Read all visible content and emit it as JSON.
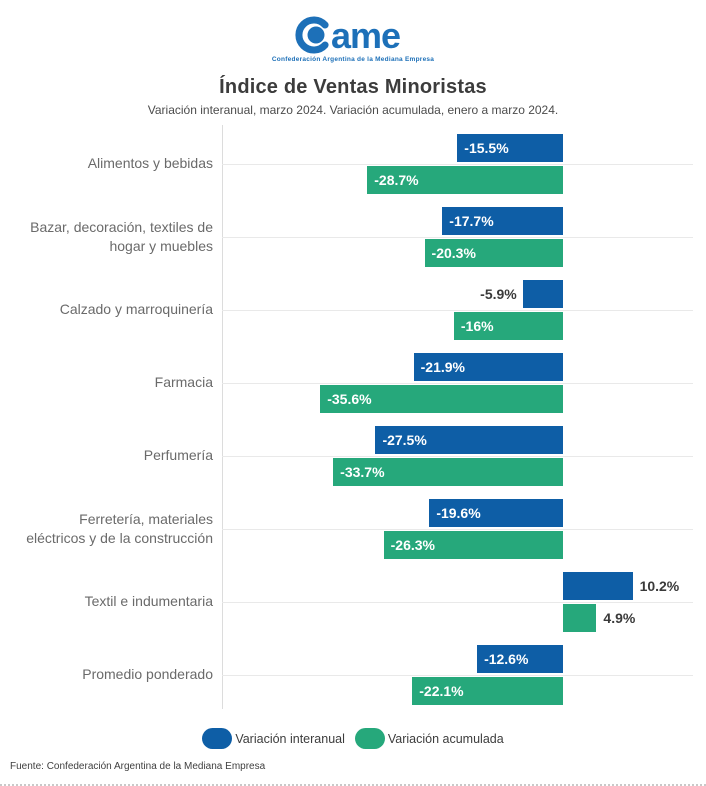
{
  "logo": {
    "brand": "ame",
    "tagline": "Confederación Argentina de la Mediana Empresa",
    "color": "#1d70b8"
  },
  "header": {
    "title": "Índice de Ventas Minoristas",
    "subtitle": "Variación interanual, marzo 2024. Variación acumulada, enero a marzo 2024."
  },
  "chart_data": {
    "type": "bar",
    "orientation": "horizontal",
    "title": "Índice de Ventas Minoristas",
    "subtitle": "Variación interanual, marzo 2024. Variación acumulada, enero a marzo 2024.",
    "unit": "%",
    "xlim": [
      -50,
      19
    ],
    "grid": "horizontal line per category + left axis line",
    "legend_position": "bottom-center",
    "categories": [
      "Alimentos y bebidas",
      "Bazar, decoración, textiles de\nhogar y muebles",
      "Calzado y marroquinería",
      "Farmacia",
      "Perfumería",
      "Ferretería, materiales\neléctricos y de la construcción",
      "Textil e indumentaria",
      "Promedio ponderado"
    ],
    "series": [
      {
        "name": "Variación interanual",
        "color": "#0e5ea6",
        "values": [
          -15.5,
          -17.7,
          -5.9,
          -21.9,
          -27.5,
          -19.6,
          10.2,
          -12.6
        ],
        "labels": [
          "-15.5%",
          "-17.7%",
          "-5.9%",
          "-21.9%",
          "-27.5%",
          "-19.6%",
          "10.2%",
          "-12.6%"
        ]
      },
      {
        "name": "Variación acumulada",
        "color": "#26a87b",
        "values": [
          -28.7,
          -20.3,
          -16,
          -35.6,
          -33.7,
          -26.3,
          4.9,
          -22.1
        ],
        "labels": [
          "-28.7%",
          "-20.3%",
          "-16%",
          "-35.6%",
          "-33.7%",
          "-26.3%",
          "4.9%",
          "-22.1%"
        ]
      }
    ]
  },
  "legend": {
    "items": [
      {
        "label": "Variación interanual",
        "color": "#0e5ea6"
      },
      {
        "label": "Variación acumulada",
        "color": "#26a87b"
      }
    ]
  },
  "footer": {
    "source": "Fuente: Confederación Argentina de la Mediana Empresa"
  }
}
